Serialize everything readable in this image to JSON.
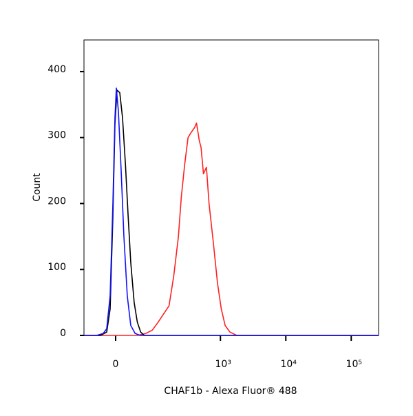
{
  "chart_data": {
    "type": "histogram-overlay",
    "xlabel": "CHAF1b - Alexa Fluor® 488",
    "ylabel": "Count",
    "xscale": "arcsinh",
    "xscale_cofactor": 50,
    "xlim": [
      -68,
      262000
    ],
    "ylim": [
      0,
      448
    ],
    "xticks": [
      0,
      {
        "value": 1000,
        "label": "10³"
      },
      {
        "value": 10000,
        "label": "10⁴"
      },
      {
        "value": 100000,
        "label": "10⁵"
      }
    ],
    "yticks": [
      0,
      100,
      200,
      300,
      400
    ],
    "series": [
      {
        "color": "#ff2020",
        "x": [
          -68,
          42,
          64,
          84,
          106,
          160,
          190,
          225,
          250,
          283,
          318,
          356,
          400,
          430,
          475,
          505,
          550,
          610,
          670,
          780,
          900,
          1030,
          1180,
          1400,
          1780,
          262000
        ],
        "values": [
          0,
          0,
          3,
          8,
          20,
          45,
          90,
          150,
          210,
          260,
          300,
          308,
          315,
          322,
          295,
          285,
          245,
          255,
          200,
          140,
          80,
          40,
          15,
          5,
          0,
          0
        ]
      },
      {
        "color": "#000000",
        "x": [
          -68,
          -28,
          -16,
          -9.8,
          -4.9,
          -1.2,
          2.4,
          7.3,
          12.3,
          17.5,
          22.8,
          28,
          35,
          42,
          50,
          59,
          262000
        ],
        "values": [
          0,
          0,
          5,
          40,
          180,
          320,
          372,
          368,
          330,
          260,
          180,
          110,
          50,
          20,
          5,
          0,
          0
        ]
      },
      {
        "color": "#1010ff",
        "x": [
          -68,
          -36,
          -22.5,
          -16,
          -9.8,
          -4.9,
          -1.2,
          1.2,
          4.9,
          9.8,
          14.8,
          21,
          28,
          37,
          49,
          262000
        ],
        "values": [
          0,
          0,
          3,
          10,
          60,
          200,
          330,
          375,
          340,
          250,
          150,
          60,
          15,
          3,
          0,
          0
        ]
      }
    ]
  }
}
